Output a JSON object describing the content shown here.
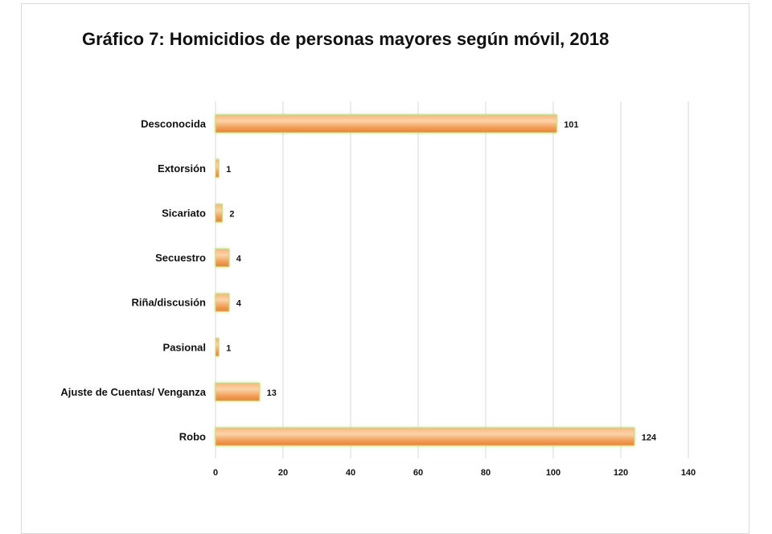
{
  "chart_data": {
    "type": "bar",
    "orientation": "horizontal",
    "title": "Gráfico 7: Homicidios de personas mayores según móvil, 2018",
    "categories": [
      "Desconocida",
      "Extorsión",
      "Sicariato",
      "Secuestro",
      "Riña/discusión",
      "Pasional",
      "Ajuste de Cuentas/ Venganza",
      "Robo"
    ],
    "values": [
      101,
      1,
      2,
      4,
      4,
      1,
      13,
      124
    ],
    "xlim": [
      0,
      140
    ],
    "xticks": [
      0,
      20,
      40,
      60,
      80,
      100,
      120,
      140
    ],
    "xlabel": "",
    "ylabel": "",
    "grid": true,
    "legend": "none",
    "colors": {
      "bar_fill": "#f4a15c",
      "bar_highlight": "#fdd3a8",
      "bar_edge": "#c7dc7e",
      "grid": "#d9d9d9"
    }
  }
}
